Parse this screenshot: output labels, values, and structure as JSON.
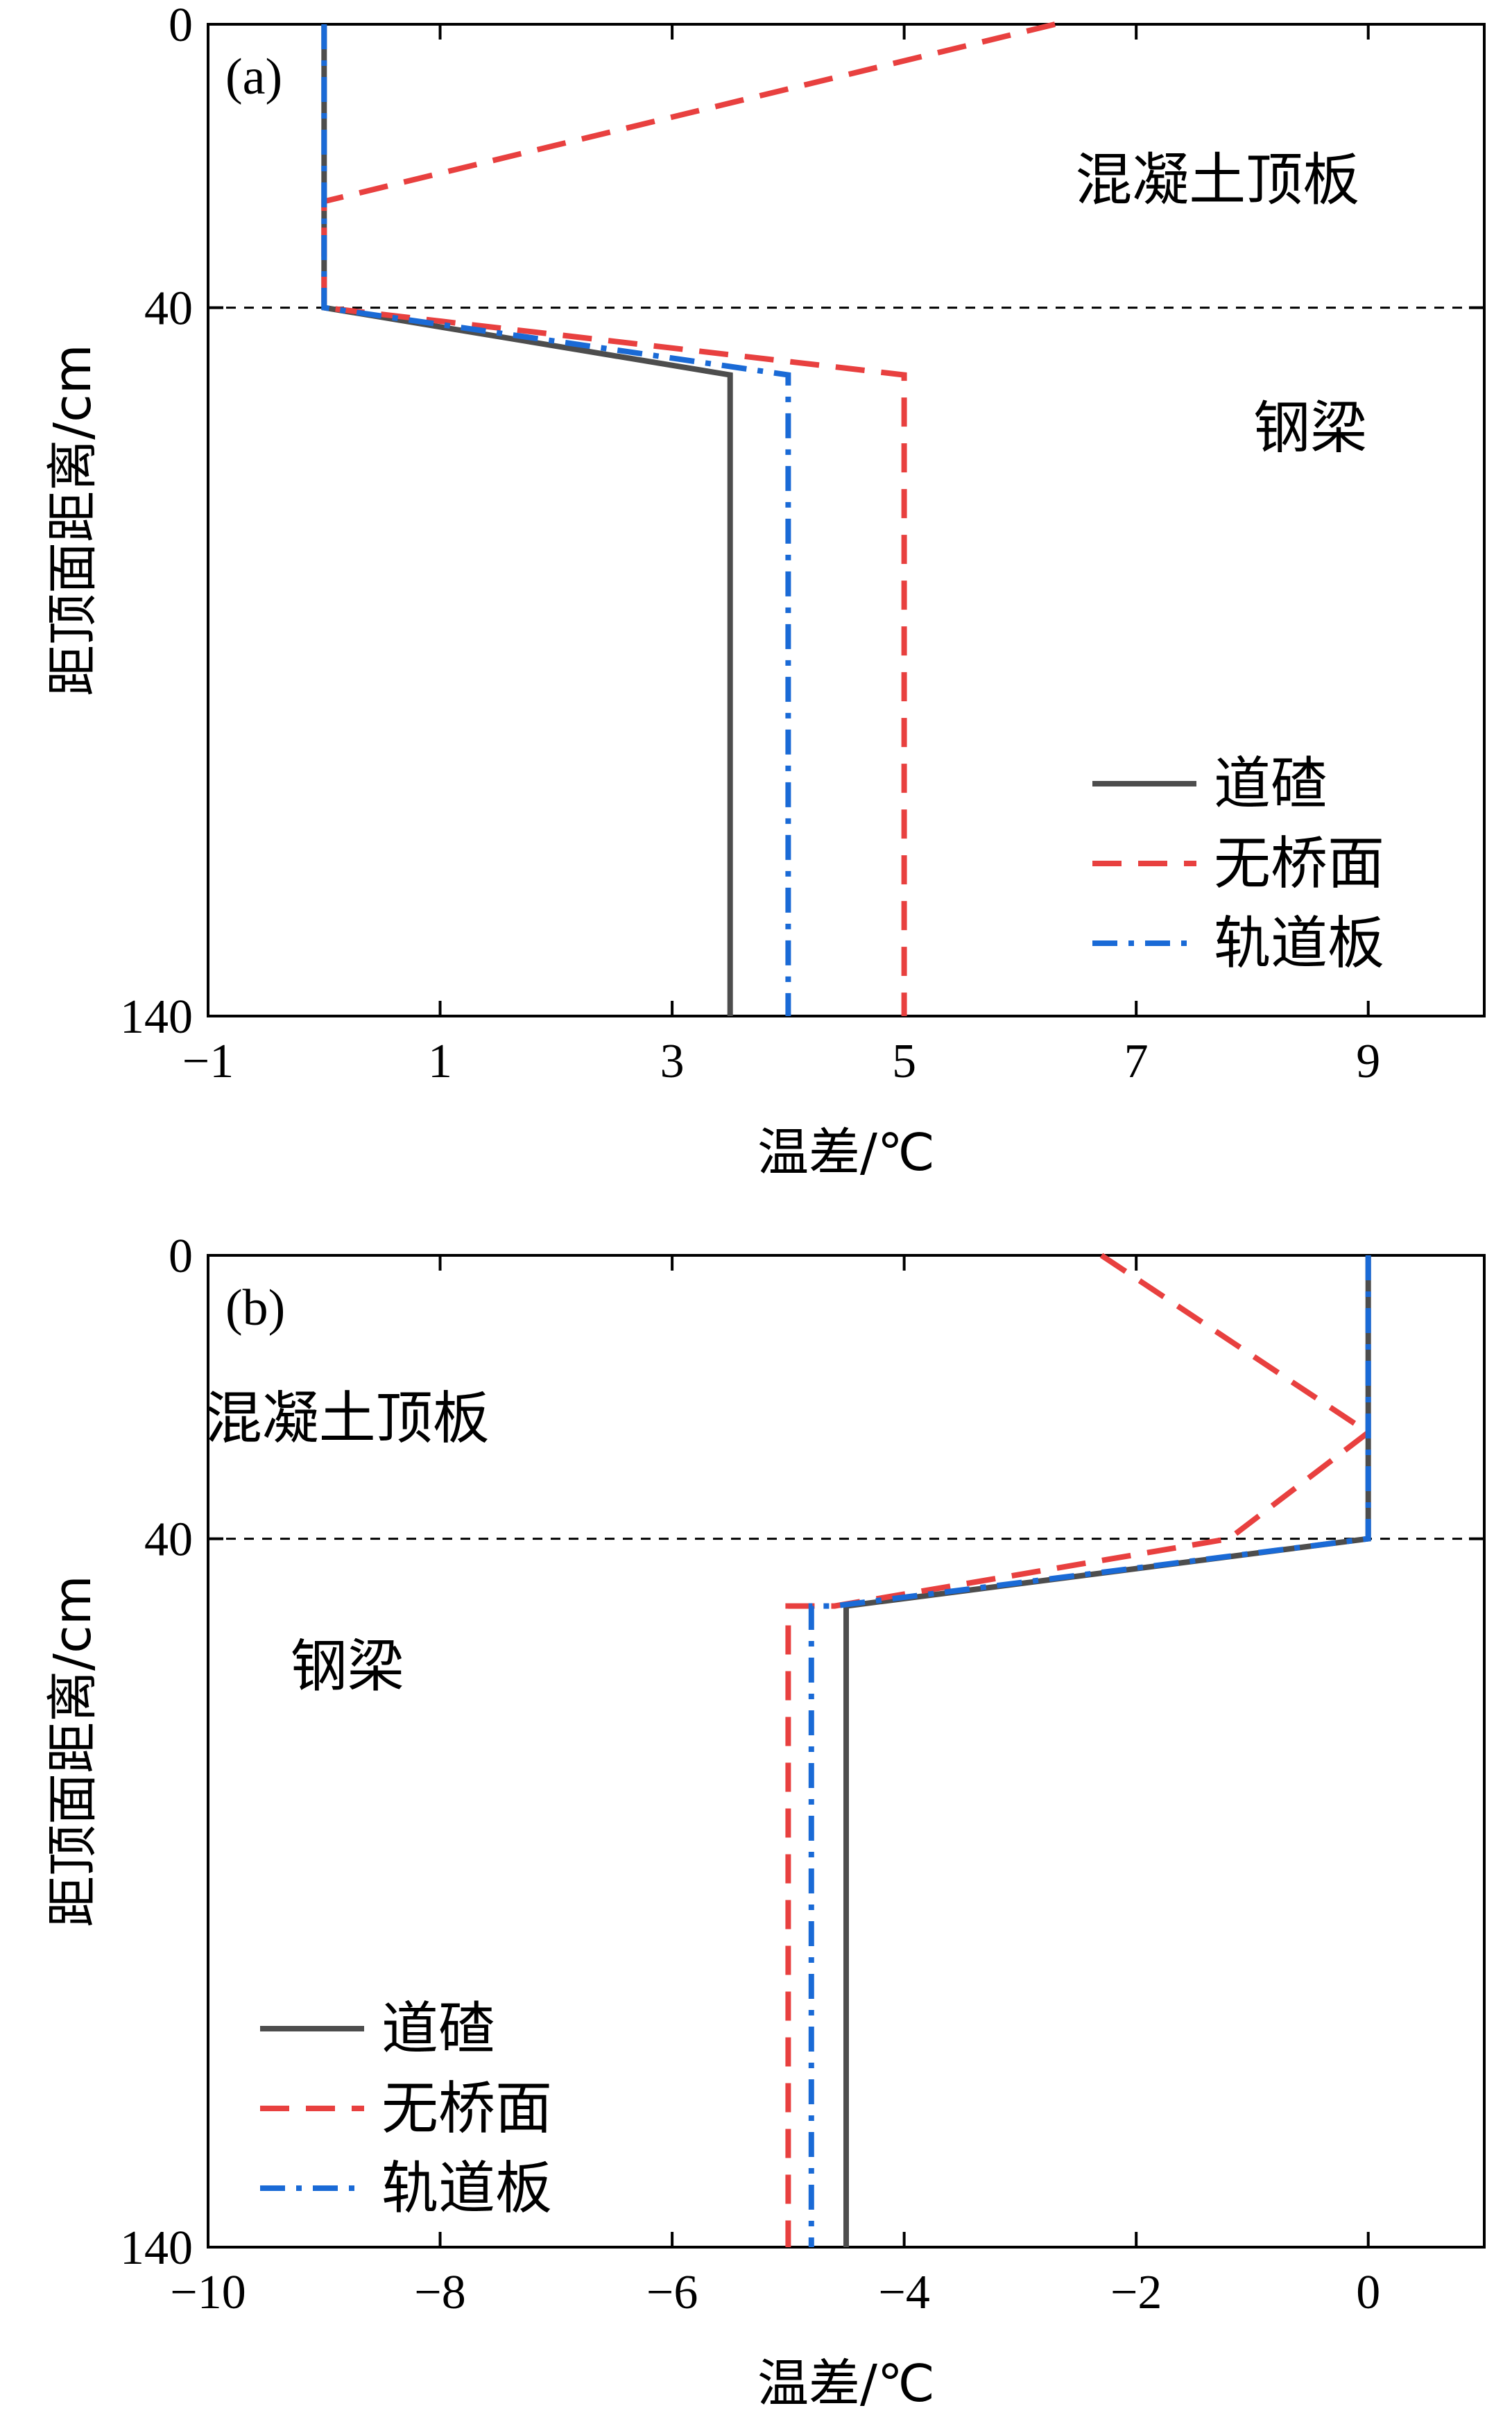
{
  "chart_data": [
    {
      "type": "line",
      "panel_label": "(a)",
      "xlabel": "温差/℃",
      "ylabel": "距顶面距离/cm",
      "xlim": [
        -1,
        10
      ],
      "ylim": [
        140,
        0
      ],
      "xticks": [
        -1,
        1,
        3,
        5,
        7,
        9
      ],
      "yticks": [
        0,
        40,
        140
      ],
      "xtick_labels": [
        "−1",
        "1",
        "3",
        "5",
        "7",
        "9"
      ],
      "ytick_labels": [
        "0",
        "40",
        "140"
      ],
      "reference_line": {
        "y": 40,
        "style": "dashed"
      },
      "regions": [
        {
          "text": "混凝土顶板",
          "x": 7.7,
          "y": 22
        },
        {
          "text": "钢梁",
          "x": 8.5,
          "y": 57
        }
      ],
      "legend_position": "lower-right",
      "series": [
        {
          "name": "道碴",
          "color": "#4d4d4d",
          "style": "solid",
          "points": [
            [
              0,
              0
            ],
            [
              0,
              40
            ],
            [
              3.5,
              49.5
            ],
            [
              3.5,
              140
            ]
          ]
        },
        {
          "name": "无桥面",
          "color": "#e8403f",
          "style": "dashed",
          "points": [
            [
              6.3,
              0
            ],
            [
              0,
              25
            ],
            [
              0,
              40
            ],
            [
              5,
              49.5
            ],
            [
              5,
              140
            ]
          ]
        },
        {
          "name": "轨道板",
          "color": "#1a6ad6",
          "style": "dashdot",
          "points": [
            [
              0,
              0
            ],
            [
              0,
              40
            ],
            [
              4,
              49.5
            ],
            [
              4,
              140
            ]
          ]
        }
      ]
    },
    {
      "type": "line",
      "panel_label": "(b)",
      "xlabel": "温差/℃",
      "ylabel": "距顶面距离/cm",
      "xlim": [
        -10,
        1
      ],
      "ylim": [
        140,
        0
      ],
      "xticks": [
        -10,
        -8,
        -6,
        -4,
        -2,
        0
      ],
      "yticks": [
        0,
        40,
        140
      ],
      "xtick_labels": [
        "−10",
        "−8",
        "−6",
        "−4",
        "−2",
        "0"
      ],
      "ytick_labels": [
        "0",
        "40",
        "140"
      ],
      "reference_line": {
        "y": 40,
        "style": "dashed"
      },
      "regions": [
        {
          "text": "混凝土顶板",
          "x": -8.8,
          "y": 23
        },
        {
          "text": "钢梁",
          "x": -8.8,
          "y": 58
        }
      ],
      "legend_position": "lower-left",
      "series": [
        {
          "name": "道碴",
          "color": "#4d4d4d",
          "style": "solid",
          "points": [
            [
              0,
              0
            ],
            [
              0,
              40
            ],
            [
              -4.5,
              49.5
            ],
            [
              -4.5,
              140
            ]
          ]
        },
        {
          "name": "无桥面",
          "color": "#e8403f",
          "style": "dashed",
          "points": [
            [
              -2.3,
              0
            ],
            [
              0,
              25
            ],
            [
              -1.2,
              40
            ],
            [
              -4.6,
              49.5
            ],
            [
              -5,
              49.5
            ],
            [
              -5,
              140
            ]
          ]
        },
        {
          "name": "轨道板",
          "color": "#1a6ad6",
          "style": "dashdot",
          "points": [
            [
              0,
              0
            ],
            [
              0,
              40
            ],
            [
              -4.6,
              49.5
            ],
            [
              -4.8,
              49.5
            ],
            [
              -4.8,
              140
            ]
          ]
        }
      ]
    }
  ]
}
